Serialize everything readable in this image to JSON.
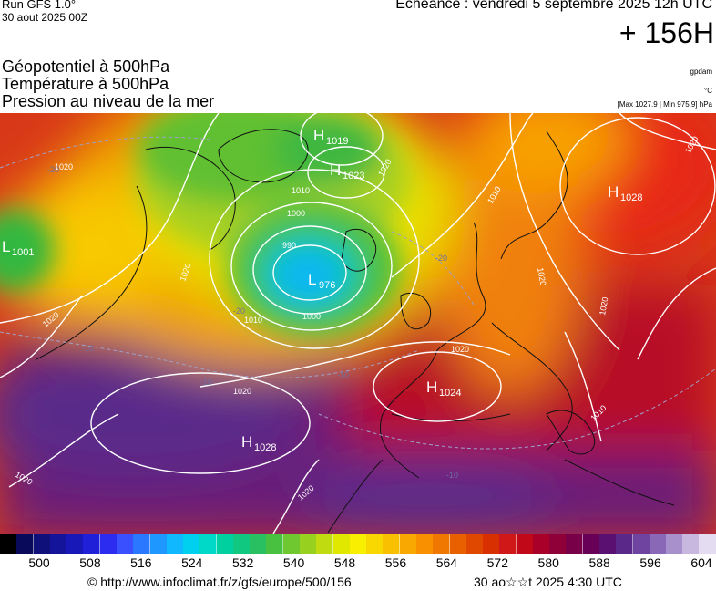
{
  "header": {
    "run_line": "Run GFS 1.0°",
    "run_date": "30 aout 2025 00Z",
    "valid_time": "Echéance : vendredi 5 septembre 2025 12h UTC",
    "lead_time": "+ 156H"
  },
  "titles": [
    "Géopotentiel à 500hPa",
    "Température à 500hPa",
    "Pression au niveau de la mer"
  ],
  "units": {
    "geopotential": "gpdam",
    "temperature": "°C",
    "pressure_range": "[Max 1027.9 | Min 975.9] hPa"
  },
  "map": {
    "pressure_centers": [
      {
        "type": "H",
        "value": "1019"
      },
      {
        "type": "H",
        "value": "1023"
      },
      {
        "type": "H",
        "value": "1028"
      },
      {
        "type": "L",
        "value": "1001"
      },
      {
        "type": "L",
        "value": "976"
      },
      {
        "type": "H",
        "value": "1024"
      },
      {
        "type": "H",
        "value": "1028"
      }
    ],
    "isobar_labels": [
      "1020",
      "1020",
      "1010",
      "1000",
      "990",
      "1010",
      "1000",
      "1020",
      "1020",
      "1020",
      "1010",
      "1020",
      "1020",
      "1020",
      "1020",
      "1020",
      "1010",
      "1020"
    ],
    "isotherm_labels": [
      "-20",
      "-20",
      "-10",
      "-10",
      "-20",
      "-10",
      "-10"
    ]
  },
  "legend": {
    "colors": [
      "#000000",
      "#0a0a5a",
      "#10107a",
      "#14149a",
      "#1818b8",
      "#2020d8",
      "#2c2cf0",
      "#3a50ff",
      "#2a78ff",
      "#1e98ff",
      "#10b8ff",
      "#00d0f0",
      "#00d8c8",
      "#00d0a0",
      "#10c880",
      "#28c060",
      "#48c040",
      "#70c830",
      "#98d020",
      "#c0dc10",
      "#e0e800",
      "#f8f000",
      "#f8d800",
      "#f8c000",
      "#f8a800",
      "#f89000",
      "#f07800",
      "#e86000",
      "#e04800",
      "#d83000",
      "#d01818",
      "#c00818",
      "#a80028",
      "#900038",
      "#780048",
      "#680058",
      "#5a1070",
      "#5a2888",
      "#6e44a0",
      "#8a68b8",
      "#a890cc",
      "#c8b8e0",
      "#e4dcf0"
    ],
    "labels": [
      "500",
      "508",
      "516",
      "524",
      "532",
      "540",
      "548",
      "556",
      "564",
      "572",
      "580",
      "588",
      "596",
      "604"
    ]
  },
  "footer": {
    "copyright": "© http://www.infoclimat.fr/z/gfs/europe/500/156",
    "timestamp": "30 ao☆☆t 2025  4:30 UTC"
  }
}
